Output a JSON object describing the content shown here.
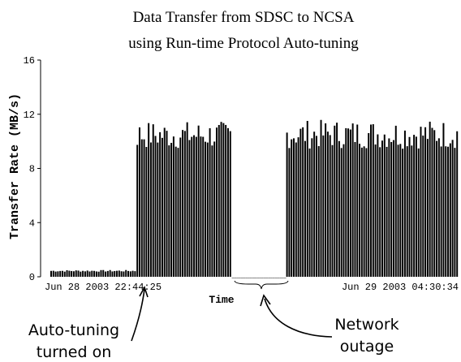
{
  "chart_data": {
    "type": "bar",
    "title": [
      "Data Transfer from SDSC to NCSA",
      "using Run-time Protocol Auto-tuning"
    ],
    "xlabel": "Time",
    "ylabel": "Transfer Rate (MB/s)",
    "ylim": [
      0,
      16
    ],
    "yticks": [
      0,
      4,
      8,
      12,
      16
    ],
    "x_start_label": "Jun 28 2003 22:44:25",
    "x_end_label": "Jun 29 2003 04:30:34",
    "grid": false,
    "bar_color": "#000000",
    "segments": [
      {
        "phase": "before auto-tuning",
        "n_bars": 38,
        "rate_min": 0.3,
        "rate_max": 0.5
      },
      {
        "phase": "auto-tuning on",
        "n_bars": 42,
        "rate_min": 8.3,
        "rate_max": 11.5
      },
      {
        "phase": "network outage",
        "n_bars": 24,
        "rate_min": 0.0,
        "rate_max": 0.0
      },
      {
        "phase": "auto-tuning on",
        "n_bars": 76,
        "rate_min": 8.3,
        "rate_max": 11.6
      }
    ],
    "annotations": [
      {
        "text": [
          "Auto-tuning",
          "turned on"
        ],
        "target": "start of auto-tuning phase"
      },
      {
        "text": [
          "Network",
          "outage"
        ],
        "target": "network outage"
      }
    ]
  }
}
